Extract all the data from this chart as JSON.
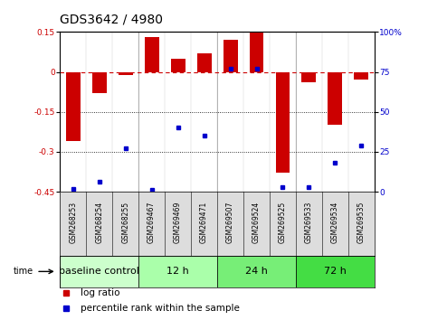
{
  "title": "GDS3642 / 4980",
  "samples": [
    "GSM268253",
    "GSM268254",
    "GSM268255",
    "GSM269467",
    "GSM269469",
    "GSM269471",
    "GSM269507",
    "GSM269524",
    "GSM269525",
    "GSM269533",
    "GSM269534",
    "GSM269535"
  ],
  "log_ratio": [
    -0.26,
    -0.08,
    -0.01,
    0.13,
    0.05,
    0.07,
    0.12,
    0.15,
    -0.38,
    -0.04,
    -0.2,
    -0.03
  ],
  "percentile_rank": [
    2,
    6,
    27,
    1,
    40,
    35,
    77,
    77,
    3,
    3,
    18,
    29
  ],
  "groups": [
    {
      "label": "baseline control",
      "start": 0,
      "end": 3,
      "color": "#ccffcc"
    },
    {
      "label": "12 h",
      "start": 3,
      "end": 6,
      "color": "#aaffaa"
    },
    {
      "label": "24 h",
      "start": 6,
      "end": 9,
      "color": "#77ee77"
    },
    {
      "label": "72 h",
      "start": 9,
      "end": 12,
      "color": "#44dd44"
    }
  ],
  "ylim_left": [
    -0.45,
    0.15
  ],
  "ylim_right": [
    0,
    100
  ],
  "yticks_left": [
    -0.45,
    -0.3,
    -0.15,
    0.0,
    0.15
  ],
  "yticks_right": [
    0,
    25,
    50,
    75,
    100
  ],
  "bar_color": "#cc0000",
  "dot_color": "#0000cc",
  "hline_y": 0.0,
  "dotted_lines": [
    -0.15,
    -0.3
  ],
  "background_color": "#ffffff",
  "title_fontsize": 10,
  "tick_fontsize": 6.5,
  "sample_fontsize": 5.5,
  "group_fontsize": 8,
  "legend_fontsize": 7.5
}
